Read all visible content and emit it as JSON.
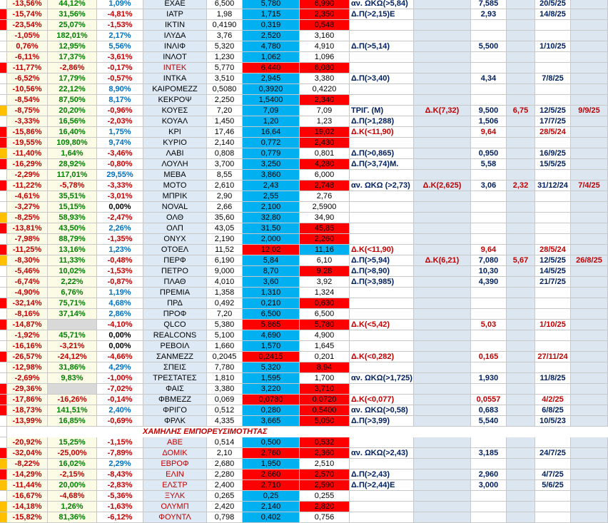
{
  "rows": [
    {
      "cells": [
        "-13,56%",
        "44,12%",
        "1,09%",
        "ΕΧΑΕ",
        "6,500",
        "5,780",
        "6,990",
        "αν. ΩΚΩ(>5,84)",
        null,
        "7,585",
        null,
        "20/5/25",
        null
      ],
      "red": [
        6
      ]
    },
    {
      "cells": [
        "-15,74%",
        "31,56%",
        "-4,81%",
        "ΙΑΤΡ",
        "1,98",
        "1,715",
        "2,350",
        "Δ.Π(>2,15)Ε",
        null,
        "2,93",
        null,
        "14/8/25",
        null
      ],
      "flag": "#ff0000",
      "red": [
        6
      ]
    },
    {
      "cells": [
        "-23,54%",
        "25,07%",
        "-1,53%",
        "ΙΚΤΙΝ",
        "0,4190",
        "0,319",
        "0,548",
        null,
        null,
        null,
        null,
        null,
        null
      ],
      "flag": "#ff0000",
      "red": [
        6
      ]
    },
    {
      "cells": [
        "-1,05%",
        "182,01%",
        "2,17%",
        "ΙΛΥΔΑ",
        "3,76",
        "2,520",
        "3,160",
        null,
        null,
        null,
        null,
        null,
        null
      ]
    },
    {
      "cells": [
        "0,76%",
        "12,95%",
        "5,56%",
        "ΙΝΛΙΦ",
        "5,320",
        "4,780",
        "4,910",
        "Δ.Π(>5,14)",
        null,
        "5,500",
        null,
        "1/10/25",
        null
      ]
    },
    {
      "cells": [
        "-6,11%",
        "17,37%",
        "-3,61%",
        "ΙΝΛΟΤ",
        "1,230",
        "1,062",
        "1,096",
        null,
        null,
        null,
        null,
        null,
        null
      ]
    },
    {
      "cells": [
        "-11,77%",
        "-2,86%",
        "-0,17%",
        "ΙΝΤΕΚ",
        "5,770",
        "6,440",
        "6,080",
        null,
        null,
        null,
        null,
        null,
        null
      ],
      "flag": "#ff0000",
      "red": [
        5,
        6
      ],
      "name_color": "#c00000"
    },
    {
      "cells": [
        "-6,52%",
        "17,79%",
        "-0,57%",
        "ΙΝΤΚΑ",
        "3,510",
        "2,945",
        "3,380",
        "Δ.Π(>3,40)",
        null,
        "4,34",
        null,
        "7/8/25",
        null
      ]
    },
    {
      "cells": [
        "-10,56%",
        "22,12%",
        "8,90%",
        "ΚΑΙΡΟΜΕΖΖ",
        "0,5080",
        "0,3920",
        "0,4220",
        null,
        null,
        null,
        null,
        null,
        null
      ]
    },
    {
      "cells": [
        "-8,54%",
        "87,50%",
        "8,17%",
        "ΚΕΚΡΟΨ",
        "2,250",
        "1,5400",
        "2,340",
        null,
        null,
        null,
        null,
        null,
        null
      ],
      "red": [
        6
      ]
    },
    {
      "cells": [
        "-8,75%",
        "20,20%",
        "-0,96%",
        "ΚΟΥΕΣ",
        "7,20",
        "7,09",
        "7,09",
        "ΤΡΙΓ. (Μ)",
        "Δ.Κ(7,32)",
        "9,500",
        "6,75",
        "12/5/25",
        "9/9/25"
      ],
      "flag": "#ffc000"
    },
    {
      "cells": [
        "-3,33%",
        "16,56%",
        "-2,03%",
        "ΚΟΥΑΛ",
        "1,450",
        "1,20",
        "1,23",
        "Δ.Π(>1,288)",
        null,
        "1,506",
        null,
        "17/7/25",
        null
      ]
    },
    {
      "cells": [
        "-15,86%",
        "16,40%",
        "1,75%",
        "ΚΡΙ",
        "17,46",
        "16,64",
        "19,02",
        "Δ.Κ(<11,90)",
        null,
        "9,64",
        null,
        "28/5/24",
        null
      ],
      "flag": "#ff0000",
      "red": [
        6
      ]
    },
    {
      "cells": [
        "-19,55%",
        "109,80%",
        "9,74%",
        "ΚΥΡΙΟ",
        "2,140",
        "0,772",
        "2,430",
        null,
        null,
        null,
        null,
        null,
        null
      ],
      "flag": "#ff0000",
      "red": [
        6
      ]
    },
    {
      "cells": [
        "-11,40%",
        "1,64%",
        "-3,46%",
        "ΛΑΒΙ",
        "0,808",
        "0,779",
        "0,801",
        "Δ.Π(>0,865)",
        null,
        "0,950",
        null,
        "16/9/25",
        null
      ],
      "flag": "#ffc000"
    },
    {
      "cells": [
        "-16,29%",
        "28,92%",
        "-0,80%",
        "ΛΟΥΛΗ",
        "3,700",
        "3,250",
        "4,280",
        "Δ.Π(>3,74)Μ.",
        null,
        "5,58",
        null,
        "15/5/25",
        null
      ],
      "flag": "#ff0000",
      "red": [
        6
      ]
    },
    {
      "cells": [
        "-2,29%",
        "117,01%",
        "29,55%",
        "ΜΕΒΑ",
        "8,55",
        "3,860",
        "6,000",
        null,
        null,
        null,
        null,
        null,
        null
      ]
    },
    {
      "cells": [
        "-11,22%",
        "-5,78%",
        "-3,33%",
        "ΜΟΤΟ",
        "2,610",
        "2,43",
        "2,748",
        "αν. ΩΚΩ (>2,73)",
        "Δ.Κ(2,625)",
        "3,06",
        "2,32",
        "31/12/24",
        "7/4/25"
      ],
      "flag": "#ff0000",
      "red": [
        6
      ]
    },
    {
      "cells": [
        "-4,61%",
        "35,51%",
        "-3,01%",
        "ΜΠΡΙΚ",
        "2,90",
        "2,55",
        "2,76",
        null,
        null,
        null,
        null,
        null,
        null
      ]
    },
    {
      "cells": [
        "-3,27%",
        "15,15%",
        "0,00%",
        "NOVAL",
        "2,66",
        "2,100",
        "2,5900",
        null,
        null,
        null,
        null,
        null,
        null
      ]
    },
    {
      "cells": [
        "-8,25%",
        "58,93%",
        "-2,47%",
        "ΟΛΘ",
        "35,60",
        "32,80",
        "34,90",
        null,
        null,
        null,
        null,
        null,
        null
      ],
      "flag": "#ffc000"
    },
    {
      "cells": [
        "-13,81%",
        "43,50%",
        "2,26%",
        "ΟΛΠ",
        "43,05",
        "31,50",
        "45,85",
        null,
        null,
        null,
        null,
        null,
        null
      ],
      "flag": "#ff0000",
      "red": [
        6
      ]
    },
    {
      "cells": [
        "-7,98%",
        "88,79%",
        "-1,35%",
        "ΟΝΥΧ",
        "2,190",
        "2,000",
        "2,260",
        null,
        null,
        null,
        null,
        null,
        null
      ],
      "red": [
        6
      ]
    },
    {
      "cells": [
        "-11,25%",
        "13,16%",
        "1,23%",
        "ΟΤΟΕΛ",
        "11,52",
        "12,02",
        "11,16",
        "Δ.Κ(<11,90)",
        null,
        "9,64",
        null,
        "28/5/24",
        null
      ],
      "flag": "#ff0000",
      "red": [
        5
      ],
      "blue": [
        6
      ]
    },
    {
      "cells": [
        "-8,30%",
        "11,33%",
        "-0,48%",
        "ΠΕΡΦ",
        "6,190",
        "5,84",
        "6,10",
        "Δ.Π(>5,94)",
        "Δ.Κ(6,21)",
        "7,080",
        "5,67",
        "12/5/25",
        "26/8/25"
      ],
      "flag": "#ffc000"
    },
    {
      "cells": [
        "-5,46%",
        "10,02%",
        "-1,53%",
        "ΠΕΤΡΟ",
        "9,000",
        "8,70",
        "9,28",
        "Δ.Π(>8,90)",
        null,
        "10,30",
        null,
        "14/5/25",
        null
      ],
      "red": [
        6
      ]
    },
    {
      "cells": [
        "-6,74%",
        "2,22%",
        "-0,87%",
        "ΠΛΑΘ",
        "4,010",
        "3,60",
        "3,92",
        "Δ.Π(>3,985)",
        null,
        "4,390",
        null,
        "21/7/25",
        null
      ]
    },
    {
      "cells": [
        "-4,90%",
        "6,76%",
        "1,19%",
        "ΠΡΕΜΙΑ",
        "1,358",
        "1,310",
        "1,324",
        null,
        null,
        null,
        null,
        null,
        null
      ]
    },
    {
      "cells": [
        "-32,14%",
        "75,71%",
        "4,68%",
        "ΠΡΔ",
        "0,492",
        "0,210",
        "0,630",
        null,
        null,
        null,
        null,
        null,
        null
      ],
      "flag": "#ff0000",
      "red": [
        6
      ]
    },
    {
      "cells": [
        "-8,16%",
        "37,14%",
        "2,86%",
        "ΠΡΟΦ",
        "7,20",
        "6,500",
        "6,500",
        null,
        null,
        null,
        null,
        null,
        null
      ]
    },
    {
      "cells": [
        "-14,87%",
        null,
        "-4,10%",
        "QLCO",
        "5,380",
        "5,865",
        "5,780",
        "Δ.Κ(<5,42)",
        null,
        "5,03",
        null,
        "1/10/25",
        null
      ],
      "flag": "#ff0000",
      "red": [
        5,
        6
      ]
    },
    {
      "cells": [
        "-1,92%",
        "45,71%",
        "0,00%",
        "REALCONS",
        "5,100",
        "4,690",
        "4,900",
        null,
        null,
        null,
        null,
        null,
        null
      ]
    },
    {
      "cells": [
        "-16,16%",
        "-3,21%",
        "0,00%",
        "ΡΕΒΟΙΛ",
        "1,660",
        "1,570",
        "1,645",
        null,
        null,
        null,
        null,
        null,
        null
      ]
    },
    {
      "cells": [
        "-26,57%",
        "-24,12%",
        "-4,66%",
        "ΣΑΝΜΕΖΖ",
        "0,2045",
        "0,2415",
        "0,201",
        "Δ.Κ(<0,282)",
        null,
        "0,165",
        null,
        "27/11/24",
        null
      ],
      "flag": "#ff0000",
      "red": [
        5
      ]
    },
    {
      "cells": [
        "-12,98%",
        "31,86%",
        "4,29%",
        "ΣΠΕΙΣ",
        "7,780",
        "5,320",
        "8,94",
        null,
        null,
        null,
        null,
        null,
        null
      ],
      "red": [
        6
      ]
    },
    {
      "cells": [
        "-2,69%",
        "9,83%",
        "-1,00%",
        "ΤΡΕΣΤΑΤΕΣ",
        "1,810",
        "1,595",
        "1,700",
        "αν. ΩΚΩ(>1,725)",
        null,
        "1,930",
        null,
        "11/8/25",
        null
      ]
    },
    {
      "cells": [
        "-29,36%",
        null,
        "-7,02%",
        "ΦΑΙΣ",
        "3,380",
        "3,220",
        "3,710",
        null,
        null,
        null,
        null,
        null,
        null
      ],
      "flag": "#ff0000",
      "red": [
        6
      ]
    },
    {
      "cells": [
        "-17,86%",
        "-16,26%",
        "-0,14%",
        "ΦΒΜΕΖΖ",
        "0,069",
        "0,0780",
        "0,0720",
        "Δ.Κ(<0,077)",
        null,
        "0,0557",
        null,
        "4/2/25",
        null
      ],
      "flag": "#ff0000",
      "red": [
        5,
        6
      ]
    },
    {
      "cells": [
        "-18,73%",
        "141,51%",
        "2,40%",
        "ΦΡΙΓΟ",
        "0,512",
        "0,280",
        "0,5400",
        "αν. ΩΚΩ(>0,58)",
        null,
        "0,683",
        null,
        "6/8/25",
        null
      ],
      "flag": "#ff0000",
      "red": [
        6
      ]
    },
    {
      "cells": [
        "-13,99%",
        "16,85%",
        "-0,69%",
        "ΦΡΛΚ",
        "4,335",
        "3,665",
        "5,050",
        "Δ.Π(>3,99)",
        null,
        "5,540",
        null,
        "10/5/23",
        null
      ],
      "red": [
        6
      ]
    },
    {
      "section": "ΧΑΜΗΛΗΣ ΕΜΠΟΡΕΥΣΙΜΟΤΗΤΑΣ"
    },
    {
      "cells": [
        "-20,92%",
        "15,25%",
        "-1,15%",
        "ΑΒΕ",
        "0,514",
        "0,500",
        "0,532",
        null,
        null,
        null,
        null,
        null,
        null
      ],
      "red": [
        6
      ],
      "name_color": "#c00000"
    },
    {
      "cells": [
        "-32,04%",
        "-25,00%",
        "-7,89%",
        "ΔΟΜΙΚ",
        "2,10",
        "2,760",
        "2,360",
        "αν. ΩΚΩ(>2,43)",
        null,
        "3,185",
        null,
        "24/7/25",
        null
      ],
      "flag": "#ff0000",
      "red": [
        5,
        6
      ],
      "name_color": "#c00000"
    },
    {
      "cells": [
        "-8,22%",
        "16,02%",
        "2,29%",
        "ΕΒΡΟΦ",
        "2,680",
        "1,950",
        "2,510",
        null,
        null,
        null,
        null,
        null,
        null
      ],
      "flag": "#ffc000",
      "name_color": "#c00000"
    },
    {
      "cells": [
        "-14,29%",
        "-2,15%",
        "-8,43%",
        "ΕΛΙΝ",
        "2,280",
        "2,660",
        "2,570",
        "Δ.Π(>2,43)",
        null,
        "2,960",
        null,
        "4/7/25",
        null
      ],
      "flag": "#ff0000",
      "red": [
        5,
        6
      ],
      "name_color": "#c00000"
    },
    {
      "cells": [
        "-11,44%",
        "20,00%",
        "-2,83%",
        "ΕΛΣΤΡ",
        "2,400",
        "2,710",
        "2,590",
        "Δ.Π(>2,44)Ε",
        null,
        "3,000",
        null,
        "5/6/25",
        null
      ],
      "flag": "#ffc000",
      "red": [
        5,
        6
      ],
      "name_color": "#c00000"
    },
    {
      "cells": [
        "-16,67%",
        "-4,68%",
        "-5,36%",
        "ΞΥΛΚ",
        "0,265",
        "0,25",
        "0,255",
        null,
        null,
        null,
        null,
        null,
        null
      ],
      "name_color": "#c00000"
    },
    {
      "cells": [
        "-14,18%",
        "1,26%",
        "-1,63%",
        "ΟΛΥΜΠ",
        "2,420",
        "2,140",
        "2,820",
        null,
        null,
        null,
        null,
        null,
        null
      ],
      "flag": "#ffc000",
      "red": [
        6
      ],
      "name_color": "#c00000"
    },
    {
      "cells": [
        "-15,82%",
        "81,36%",
        "-6,12%",
        "ΦΟΥΝΤΛ",
        "0,798",
        "0,402",
        "0,756",
        null,
        null,
        null,
        null,
        null,
        null
      ],
      "flag": "#ffc000",
      "name_color": "#c00000"
    }
  ]
}
